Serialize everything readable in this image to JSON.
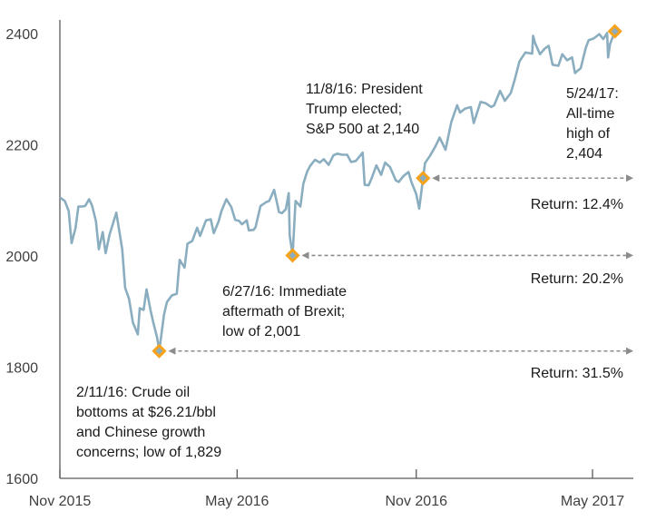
{
  "chart_data": {
    "type": "line",
    "title": "",
    "xlabel": "",
    "ylabel": "",
    "ylim": [
      1600,
      2420
    ],
    "xlim": [
      "2015-11-01",
      "2017-06-01"
    ],
    "grid": false,
    "legend": "none",
    "y_ticks": [
      1600,
      1800,
      2000,
      2200,
      2400
    ],
    "y_tick_labels": [
      "1600",
      "1800",
      "2000",
      "2200",
      "2400"
    ],
    "x_ticks": [
      "2015-11-01",
      "2016-05-01",
      "2016-11-01",
      "2017-05-01"
    ],
    "x_tick_labels": [
      "Nov 2015",
      "May 2016",
      "Nov 2016",
      "May 2017"
    ],
    "series": [
      {
        "name": "S&P 500",
        "color": "#8aaec0",
        "points": [
          [
            "2015-11-02",
            2104
          ],
          [
            "2015-11-06",
            2099
          ],
          [
            "2015-11-10",
            2081
          ],
          [
            "2015-11-13",
            2023
          ],
          [
            "2015-11-17",
            2050
          ],
          [
            "2015-11-20",
            2089
          ],
          [
            "2015-11-24",
            2089
          ],
          [
            "2015-11-27",
            2090
          ],
          [
            "2015-12-01",
            2102
          ],
          [
            "2015-12-04",
            2091
          ],
          [
            "2015-12-08",
            2063
          ],
          [
            "2015-12-11",
            2012
          ],
          [
            "2015-12-15",
            2043
          ],
          [
            "2015-12-18",
            2005
          ],
          [
            "2015-12-22",
            2038
          ],
          [
            "2015-12-29",
            2078
          ],
          [
            "2016-01-04",
            2012
          ],
          [
            "2016-01-07",
            1943
          ],
          [
            "2016-01-11",
            1923
          ],
          [
            "2016-01-15",
            1880
          ],
          [
            "2016-01-20",
            1859
          ],
          [
            "2016-01-22",
            1906
          ],
          [
            "2016-01-26",
            1903
          ],
          [
            "2016-01-29",
            1940
          ],
          [
            "2016-02-02",
            1903
          ],
          [
            "2016-02-05",
            1880
          ],
          [
            "2016-02-09",
            1852
          ],
          [
            "2016-02-11",
            1829
          ],
          [
            "2016-02-16",
            1895
          ],
          [
            "2016-02-19",
            1917
          ],
          [
            "2016-02-24",
            1929
          ],
          [
            "2016-02-29",
            1932
          ],
          [
            "2016-03-03",
            1993
          ],
          [
            "2016-03-08",
            1979
          ],
          [
            "2016-03-11",
            2022
          ],
          [
            "2016-03-16",
            2027
          ],
          [
            "2016-03-21",
            2051
          ],
          [
            "2016-03-24",
            2036
          ],
          [
            "2016-03-30",
            2064
          ],
          [
            "2016-04-04",
            2066
          ],
          [
            "2016-04-07",
            2041
          ],
          [
            "2016-04-12",
            2062
          ],
          [
            "2016-04-15",
            2081
          ],
          [
            "2016-04-20",
            2102
          ],
          [
            "2016-04-25",
            2088
          ],
          [
            "2016-04-29",
            2065
          ],
          [
            "2016-05-03",
            2063
          ],
          [
            "2016-05-06",
            2057
          ],
          [
            "2016-05-11",
            2064
          ],
          [
            "2016-05-13",
            2046
          ],
          [
            "2016-05-18",
            2047
          ],
          [
            "2016-05-20",
            2052
          ],
          [
            "2016-05-25",
            2090
          ],
          [
            "2016-05-31",
            2097
          ],
          [
            "2016-06-03",
            2099
          ],
          [
            "2016-06-08",
            2119
          ],
          [
            "2016-06-13",
            2079
          ],
          [
            "2016-06-16",
            2077
          ],
          [
            "2016-06-20",
            2084
          ],
          [
            "2016-06-23",
            2113
          ],
          [
            "2016-06-24",
            2037
          ],
          [
            "2016-06-27",
            2001
          ],
          [
            "2016-06-30",
            2099
          ],
          [
            "2016-07-05",
            2089
          ],
          [
            "2016-07-08",
            2130
          ],
          [
            "2016-07-12",
            2152
          ],
          [
            "2016-07-15",
            2162
          ],
          [
            "2016-07-20",
            2173
          ],
          [
            "2016-07-25",
            2168
          ],
          [
            "2016-07-29",
            2174
          ],
          [
            "2016-08-03",
            2164
          ],
          [
            "2016-08-08",
            2181
          ],
          [
            "2016-08-12",
            2184
          ],
          [
            "2016-08-17",
            2182
          ],
          [
            "2016-08-22",
            2182
          ],
          [
            "2016-08-26",
            2169
          ],
          [
            "2016-08-31",
            2171
          ],
          [
            "2016-09-07",
            2186
          ],
          [
            "2016-09-09",
            2128
          ],
          [
            "2016-09-13",
            2127
          ],
          [
            "2016-09-16",
            2139
          ],
          [
            "2016-09-21",
            2163
          ],
          [
            "2016-09-26",
            2146
          ],
          [
            "2016-09-30",
            2168
          ],
          [
            "2016-10-05",
            2160
          ],
          [
            "2016-10-11",
            2136
          ],
          [
            "2016-10-14",
            2133
          ],
          [
            "2016-10-19",
            2144
          ],
          [
            "2016-10-24",
            2151
          ],
          [
            "2016-10-27",
            2133
          ],
          [
            "2016-11-01",
            2111
          ],
          [
            "2016-11-04",
            2085
          ],
          [
            "2016-11-08",
            2140
          ],
          [
            "2016-11-10",
            2167
          ],
          [
            "2016-11-15",
            2180
          ],
          [
            "2016-11-21",
            2198
          ],
          [
            "2016-11-25",
            2213
          ],
          [
            "2016-12-01",
            2191
          ],
          [
            "2016-12-07",
            2241
          ],
          [
            "2016-12-13",
            2271
          ],
          [
            "2016-12-16",
            2258
          ],
          [
            "2016-12-21",
            2265
          ],
          [
            "2016-12-27",
            2268
          ],
          [
            "2016-12-30",
            2239
          ],
          [
            "2017-01-06",
            2277
          ],
          [
            "2017-01-11",
            2275
          ],
          [
            "2017-01-17",
            2268
          ],
          [
            "2017-01-20",
            2271
          ],
          [
            "2017-01-26",
            2297
          ],
          [
            "2017-01-31",
            2279
          ],
          [
            "2017-02-06",
            2293
          ],
          [
            "2017-02-10",
            2316
          ],
          [
            "2017-02-15",
            2350
          ],
          [
            "2017-02-21",
            2366
          ],
          [
            "2017-02-28",
            2364
          ],
          [
            "2017-03-01",
            2396
          ],
          [
            "2017-03-03",
            2383
          ],
          [
            "2017-03-08",
            2363
          ],
          [
            "2017-03-13",
            2373
          ],
          [
            "2017-03-17",
            2378
          ],
          [
            "2017-03-21",
            2344
          ],
          [
            "2017-03-27",
            2342
          ],
          [
            "2017-03-31",
            2363
          ],
          [
            "2017-04-05",
            2352
          ],
          [
            "2017-04-10",
            2357
          ],
          [
            "2017-04-13",
            2329
          ],
          [
            "2017-04-19",
            2338
          ],
          [
            "2017-04-24",
            2374
          ],
          [
            "2017-04-27",
            2388
          ],
          [
            "2017-05-02",
            2391
          ],
          [
            "2017-05-08",
            2399
          ],
          [
            "2017-05-12",
            2390
          ],
          [
            "2017-05-16",
            2401
          ],
          [
            "2017-05-17",
            2357
          ],
          [
            "2017-05-19",
            2381
          ],
          [
            "2017-05-24",
            2404
          ]
        ]
      }
    ],
    "markers": [
      {
        "date": "2016-02-11",
        "value": 1829,
        "color": "#f7a21b",
        "fill": "#8aaec0"
      },
      {
        "date": "2016-06-27",
        "value": 2001,
        "color": "#f7a21b",
        "fill": "#8aaec0"
      },
      {
        "date": "2016-11-08",
        "value": 2140,
        "color": "#f7a21b",
        "fill": "#8aaec0"
      },
      {
        "date": "2017-05-24",
        "value": 2404,
        "color": "#f7a21b",
        "fill": "#8aaec0"
      }
    ],
    "annotations": [
      {
        "id": "brexit",
        "lines": [
          "6/27/16: Immediate",
          "aftermath of Brexit;",
          "low of 2,001"
        ]
      },
      {
        "id": "oil",
        "lines": [
          "2/11/16: Crude oil",
          "bottoms at $26.21/bbl",
          "and Chinese growth",
          "concerns; low of 1,829"
        ]
      },
      {
        "id": "trump",
        "lines": [
          "11/8/16: President",
          "Trump elected;",
          "S&P 500 at 2,140"
        ]
      },
      {
        "id": "high",
        "lines": [
          "5/24/17:",
          "All-time",
          "high of",
          "2,404"
        ]
      }
    ],
    "return_arrows": [
      {
        "from_date": "2016-11-08",
        "level": 2140,
        "label": "Return: 12.4%",
        "return_pct": 12.4
      },
      {
        "from_date": "2016-06-27",
        "level": 2001,
        "label": "Return: 20.2%",
        "return_pct": 20.2
      },
      {
        "from_date": "2016-02-11",
        "level": 1829,
        "label": "Return: 31.5%",
        "return_pct": 31.5
      }
    ],
    "colors": {
      "line": "#8aaec0",
      "marker_outline": "#f7a21b",
      "arrow": "#8c8c8c",
      "axis": "#595959"
    }
  }
}
